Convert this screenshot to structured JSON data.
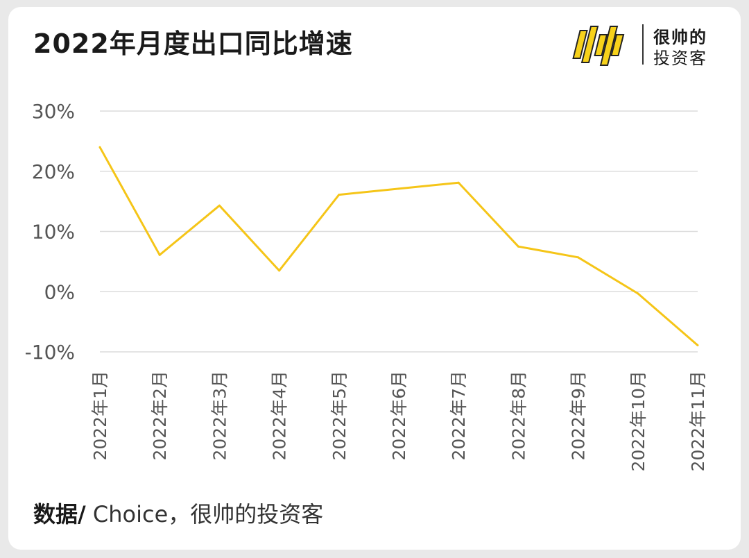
{
  "header": {
    "title": "2022年月度出口同比增速",
    "logo_line1": "很帅的",
    "logo_line2": "投资客"
  },
  "footer": {
    "source_label": "数据/",
    "source_text": " Choice，很帅的投资客"
  },
  "colors": {
    "line": "#f5c518",
    "grid": "#dcdcdc",
    "tick_text": "#555555",
    "logo_yellow": "#f7d21b"
  },
  "icons": {
    "logo_mark": "shuai-logo-icon"
  },
  "chart_data": {
    "type": "line",
    "title": "2022年月度出口同比增速",
    "xlabel": "",
    "ylabel": "",
    "categories": [
      "2022年1月",
      "2022年2月",
      "2022年3月",
      "2022年4月",
      "2022年5月",
      "2022年6月",
      "2022年7月",
      "2022年8月",
      "2022年9月",
      "2022年10月",
      "2022年11月"
    ],
    "series": [
      {
        "values": [
          24.0,
          6.1,
          14.3,
          3.5,
          16.1,
          17.1,
          18.1,
          7.5,
          5.7,
          -0.3,
          -8.9
        ]
      }
    ],
    "ylim": [
      -10,
      30
    ],
    "yticks": [
      30,
      20,
      10,
      0,
      -10
    ],
    "ytick_labels": [
      "30%",
      "20%",
      "10%",
      "0%",
      "-10%"
    ],
    "grid": true,
    "legend": "none"
  }
}
